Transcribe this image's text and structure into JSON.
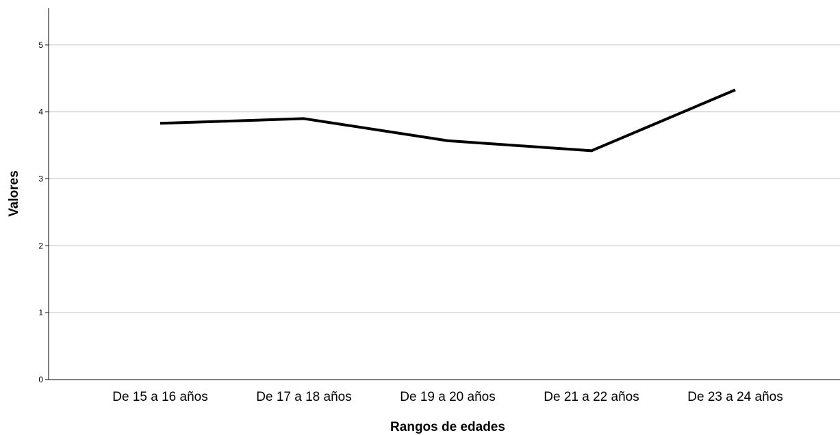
{
  "chart_data": {
    "type": "line",
    "title": "",
    "xlabel": "Rangos de edades",
    "ylabel": "Valores",
    "categories": [
      "De 15 a 16 años",
      "De 17 a 18 años",
      "De 19 a 20 años",
      "De 21 a 22 años",
      "De 23 a 24 años"
    ],
    "series": [
      {
        "values": [
          3.83,
          3.9,
          3.57,
          3.42,
          4.33
        ]
      }
    ],
    "ylim": [
      0,
      5.55
    ],
    "yticks": [
      0,
      1,
      2,
      3,
      4,
      5
    ],
    "grid": true,
    "legend": "none",
    "colors": {
      "line": "#000000",
      "grid": "#bfbfbf",
      "axis": "#000000"
    }
  }
}
